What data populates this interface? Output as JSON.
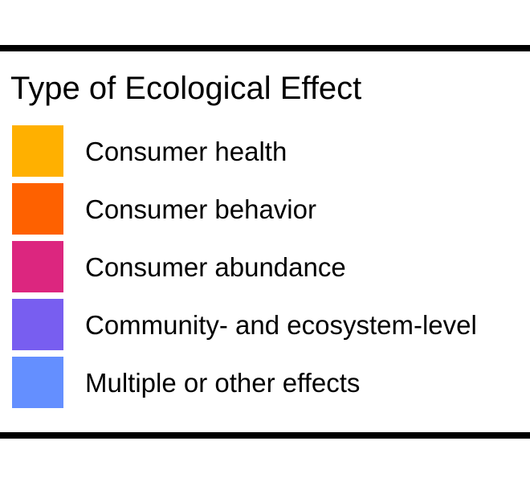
{
  "chart_data": {
    "type": "legend",
    "title": "Type of Ecological Effect",
    "legend": [
      {
        "label": "Consumer health",
        "color": "#FFB000"
      },
      {
        "label": "Consumer behavior",
        "color": "#FE6100"
      },
      {
        "label": "Consumer abundance",
        "color": "#DC267F"
      },
      {
        "label": "Community- and ecosystem-level",
        "color": "#785EF0"
      },
      {
        "label": "Multiple or other effects",
        "color": "#648FFF"
      }
    ]
  }
}
